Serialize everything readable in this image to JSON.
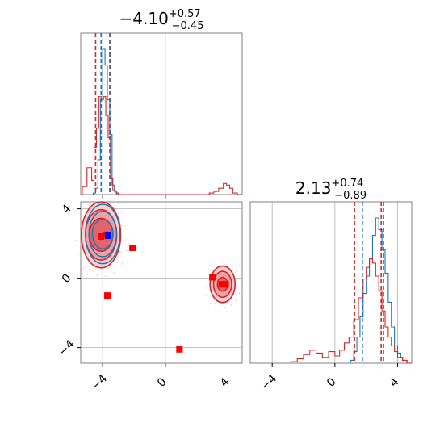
{
  "colors": {
    "red": "#d62728",
    "blue": "#1f77b4",
    "marker_red": "#ff0000",
    "marker_blue": "#0000ff",
    "grid": "#b0b0b0",
    "axis": "#808080"
  },
  "chart_data": [
    {
      "type": "corner",
      "panel": "histogram-top",
      "title": {
        "value": "−4.10",
        "sup": "+0.57",
        "sub": "−0.45"
      },
      "xlim": [
        -5.4,
        4.9
      ],
      "xticks": [
        -4,
        0,
        4
      ],
      "vlines": {
        "red": [
          -4.45,
          -3.5
        ],
        "blue": [
          -4.1,
          -3.55
        ]
      },
      "series": [
        {
          "color_key": "blue",
          "x": [
            -4.6,
            -4.45,
            -4.3,
            -4.15,
            -4.0,
            -3.85,
            -3.7,
            -3.55,
            -3.4,
            -3.25,
            -3.1
          ],
          "values": [
            0.01,
            0.04,
            0.22,
            0.6,
            0.92,
            0.82,
            0.6,
            0.38,
            0.06,
            0.02,
            0.0
          ]
        },
        {
          "color_key": "red",
          "x": [
            -5.3,
            -5.0,
            -4.7,
            -4.55,
            -4.4,
            -4.25,
            -4.1,
            -3.95,
            -3.8,
            -3.65,
            -3.5,
            -3.35,
            -3.2,
            -3.0,
            2.8,
            3.1,
            3.4,
            3.7,
            3.9,
            4.1,
            4.3,
            4.6
          ],
          "values": [
            0.05,
            0.17,
            0.09,
            0.3,
            0.42,
            0.62,
            0.6,
            0.62,
            0.5,
            0.36,
            0.1,
            0.03,
            0.01,
            0.0,
            0.01,
            0.02,
            0.04,
            0.07,
            0.06,
            0.04,
            0.01,
            0.0
          ]
        }
      ]
    },
    {
      "type": "corner",
      "panel": "scatter-bottom-left",
      "xlim": [
        -5.4,
        4.9
      ],
      "ylim": [
        -4.9,
        4.4
      ],
      "xticks": [
        -4,
        0,
        4
      ],
      "yticks": [
        -4,
        0,
        4
      ],
      "xtick_labels": [
        "−4",
        "0",
        "4"
      ],
      "ytick_labels": [
        "−4",
        "0",
        "4"
      ],
      "contour_centers": [
        {
          "x": -4.1,
          "y": 2.5,
          "rx": [
            1.25,
            1.0,
            0.75
          ],
          "ry": [
            1.9,
            1.45,
            0.95
          ]
        },
        {
          "x": 3.65,
          "y": -0.35,
          "rx": [
            0.8,
            0.58,
            0.33
          ],
          "ry": [
            1.05,
            0.75,
            0.4
          ]
        }
      ],
      "red_markers": [
        {
          "x": -4.1,
          "y": 2.4
        },
        {
          "x": -3.8,
          "y": 2.5
        },
        {
          "x": -2.1,
          "y": 1.75
        },
        {
          "x": -3.7,
          "y": -1.0
        },
        {
          "x": 0.9,
          "y": -4.1
        },
        {
          "x": 3.0,
          "y": 0.05
        },
        {
          "x": 3.6,
          "y": -0.35
        },
        {
          "x": 3.85,
          "y": -0.35
        }
      ],
      "blue_markers": [
        {
          "x": -3.65,
          "y": 2.45
        }
      ]
    },
    {
      "type": "corner",
      "panel": "histogram-right",
      "title": {
        "value": "2.13",
        "sup": "+0.74",
        "sub": "−0.89"
      },
      "xlim": [
        -5.4,
        4.9
      ],
      "xticks": [
        -4,
        0,
        4
      ],
      "xtick_labels": [
        "−4",
        "0",
        "4"
      ],
      "vlines": {
        "red": [
          1.25,
          2.95
        ],
        "blue": [
          1.75,
          3.1
        ]
      },
      "series": [
        {
          "color_key": "blue",
          "x": [
            1.0,
            1.2,
            1.4,
            1.6,
            1.8,
            2.0,
            2.2,
            2.4,
            2.6,
            2.8,
            3.0,
            3.2,
            3.4,
            3.6,
            3.8,
            4.0,
            4.2,
            4.4,
            4.6
          ],
          "values": [
            0.02,
            0.08,
            0.18,
            0.32,
            0.48,
            0.6,
            0.72,
            0.88,
            1.0,
            0.92,
            0.78,
            0.62,
            0.42,
            0.25,
            0.12,
            0.07,
            0.04,
            0.02,
            0.0
          ]
        },
        {
          "color_key": "red",
          "x": [
            -2.8,
            -2.4,
            -2.0,
            -1.6,
            -1.2,
            -0.8,
            -0.4,
            0.0,
            0.3,
            0.6,
            0.9,
            1.2,
            1.5,
            1.8,
            2.0,
            2.2,
            2.4,
            2.6,
            2.8,
            3.0,
            3.2,
            3.4,
            3.6,
            3.8,
            4.0,
            4.3,
            4.6
          ],
          "values": [
            0.01,
            0.03,
            0.06,
            0.09,
            0.07,
            0.04,
            0.08,
            0.05,
            0.09,
            0.14,
            0.18,
            0.3,
            0.45,
            0.58,
            0.66,
            0.72,
            0.69,
            0.6,
            0.5,
            0.36,
            0.25,
            0.18,
            0.12,
            0.08,
            0.04,
            0.02,
            0.0
          ]
        }
      ]
    }
  ]
}
